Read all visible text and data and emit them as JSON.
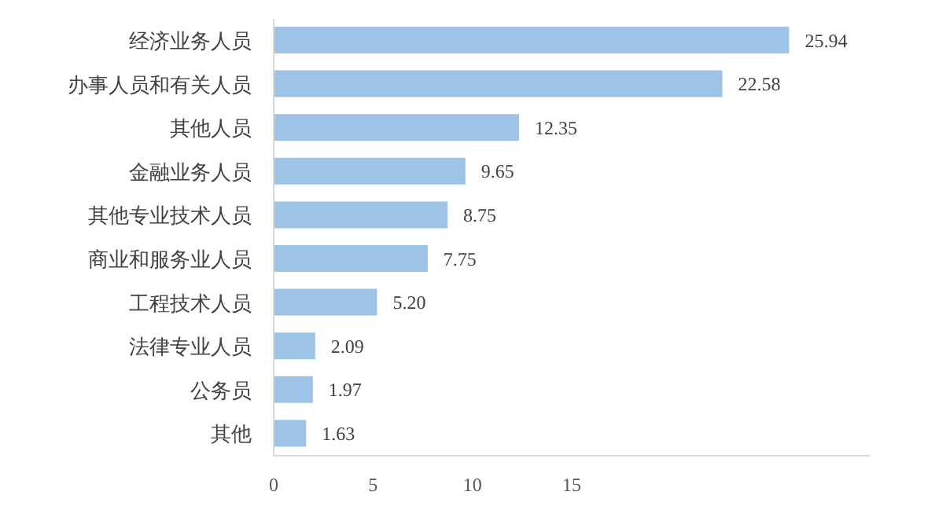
{
  "chart_data": {
    "type": "bar",
    "orientation": "horizontal",
    "categories": [
      "经济业务人员",
      "办事人员和有关人员",
      "其他人员",
      "金融业务人员",
      "其他专业技术人员",
      "商业和服务业人员",
      "工程技术人员",
      "法律专业人员",
      "公务员",
      "其他"
    ],
    "values": [
      25.94,
      22.58,
      12.35,
      9.65,
      8.75,
      7.75,
      5.2,
      2.09,
      1.97,
      1.63
    ],
    "value_labels": [
      "25.94",
      "22.58",
      "12.35",
      "9.65",
      "8.75",
      "7.75",
      "5.20",
      "2.09",
      "1.97",
      "1.63"
    ],
    "color": "#9dc3e6",
    "xlim": [
      0,
      30
    ],
    "xticks": [
      0,
      5,
      10,
      15
    ],
    "grid": false
  }
}
